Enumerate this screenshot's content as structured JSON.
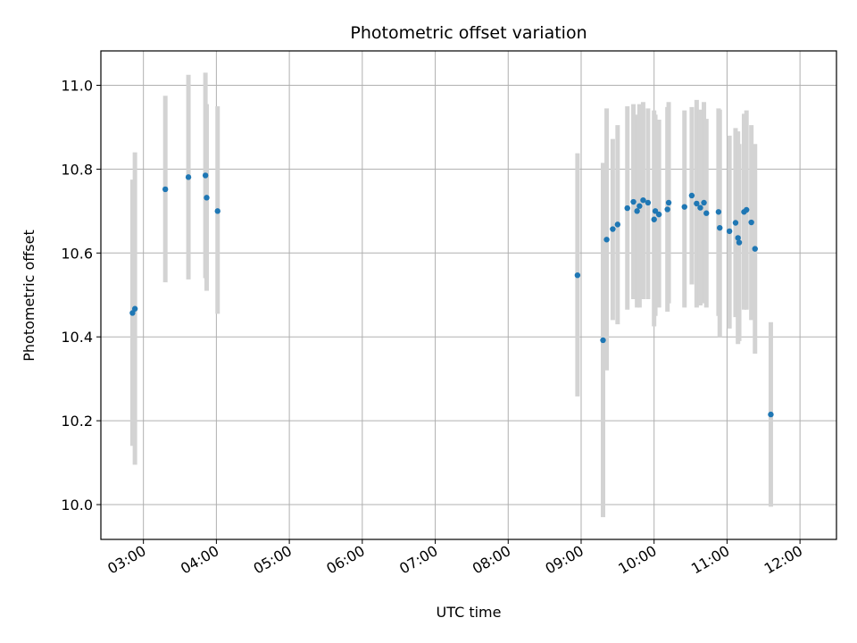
{
  "chart_data": {
    "type": "scatter",
    "title": "Photometric offset variation",
    "xlabel": "UTC time",
    "ylabel": "Photometric offset",
    "x_ticks": [
      "03:00",
      "04:00",
      "05:00",
      "06:00",
      "07:00",
      "08:00",
      "09:00",
      "10:00",
      "11:00",
      "12:00"
    ],
    "x_range": [
      "02:25",
      "12:30"
    ],
    "y_ticks": [
      10.0,
      10.2,
      10.4,
      10.6,
      10.8,
      11.0
    ],
    "y_tick_labels": [
      "10.0",
      "10.2",
      "10.4",
      "10.6",
      "10.8",
      "11.0"
    ],
    "ylim": [
      9.917,
      11.082
    ],
    "grid": true,
    "colors": {
      "point": "#1f77b4",
      "errorbar": "#d3d3d3",
      "grid": "#b0b0b0"
    },
    "points": [
      {
        "x": "02:51",
        "y": 10.457,
        "ylow": 10.14,
        "yhigh": 10.775
      },
      {
        "x": "02:53",
        "y": 10.467,
        "ylow": 10.095,
        "yhigh": 10.84
      },
      {
        "x": "03:18",
        "y": 10.752,
        "ylow": 10.53,
        "yhigh": 10.975
      },
      {
        "x": "03:37",
        "y": 10.781,
        "ylow": 10.537,
        "yhigh": 11.025
      },
      {
        "x": "03:51",
        "y": 10.785,
        "ylow": 10.54,
        "yhigh": 11.03
      },
      {
        "x": "03:52",
        "y": 10.732,
        "ylow": 10.51,
        "yhigh": 10.955
      },
      {
        "x": "04:01",
        "y": 10.7,
        "ylow": 10.455,
        "yhigh": 10.95
      },
      {
        "x": "08:57",
        "y": 10.547,
        "ylow": 10.258,
        "yhigh": 10.838
      },
      {
        "x": "09:18",
        "y": 10.392,
        "ylow": 9.97,
        "yhigh": 10.815
      },
      {
        "x": "09:21",
        "y": 10.632,
        "ylow": 10.32,
        "yhigh": 10.945
      },
      {
        "x": "09:26",
        "y": 10.657,
        "ylow": 10.44,
        "yhigh": 10.872
      },
      {
        "x": "09:30",
        "y": 10.668,
        "ylow": 10.43,
        "yhigh": 10.905
      },
      {
        "x": "09:38",
        "y": 10.707,
        "ylow": 10.465,
        "yhigh": 10.95
      },
      {
        "x": "09:43",
        "y": 10.722,
        "ylow": 10.49,
        "yhigh": 10.955
      },
      {
        "x": "09:46",
        "y": 10.7,
        "ylow": 10.47,
        "yhigh": 10.93
      },
      {
        "x": "09:48",
        "y": 10.712,
        "ylow": 10.47,
        "yhigh": 10.955
      },
      {
        "x": "09:51",
        "y": 10.726,
        "ylow": 10.49,
        "yhigh": 10.96
      },
      {
        "x": "09:55",
        "y": 10.72,
        "ylow": 10.49,
        "yhigh": 10.945
      },
      {
        "x": "10:00",
        "y": 10.68,
        "ylow": 10.425,
        "yhigh": 10.94
      },
      {
        "x": "10:01",
        "y": 10.7,
        "ylow": 10.45,
        "yhigh": 10.93
      },
      {
        "x": "10:04",
        "y": 10.692,
        "ylow": 10.47,
        "yhigh": 10.918
      },
      {
        "x": "10:11",
        "y": 10.704,
        "ylow": 10.46,
        "yhigh": 10.948
      },
      {
        "x": "10:12",
        "y": 10.72,
        "ylow": 10.48,
        "yhigh": 10.96
      },
      {
        "x": "10:25",
        "y": 10.71,
        "ylow": 10.47,
        "yhigh": 10.94
      },
      {
        "x": "10:31",
        "y": 10.737,
        "ylow": 10.525,
        "yhigh": 10.948
      },
      {
        "x": "10:35",
        "y": 10.718,
        "ylow": 10.47,
        "yhigh": 10.965
      },
      {
        "x": "10:38",
        "y": 10.708,
        "ylow": 10.475,
        "yhigh": 10.942
      },
      {
        "x": "10:41",
        "y": 10.72,
        "ylow": 10.48,
        "yhigh": 10.96
      },
      {
        "x": "10:43",
        "y": 10.695,
        "ylow": 10.47,
        "yhigh": 10.92
      },
      {
        "x": "10:53",
        "y": 10.698,
        "ylow": 10.45,
        "yhigh": 10.945
      },
      {
        "x": "10:54",
        "y": 10.66,
        "ylow": 10.4,
        "yhigh": 10.942
      },
      {
        "x": "11:02",
        "y": 10.652,
        "ylow": 10.42,
        "yhigh": 10.88
      },
      {
        "x": "11:07",
        "y": 10.672,
        "ylow": 10.447,
        "yhigh": 10.898
      },
      {
        "x": "11:09",
        "y": 10.636,
        "ylow": 10.383,
        "yhigh": 10.89
      },
      {
        "x": "11:10",
        "y": 10.625,
        "ylow": 10.39,
        "yhigh": 10.86
      },
      {
        "x": "11:14",
        "y": 10.698,
        "ylow": 10.465,
        "yhigh": 10.932
      },
      {
        "x": "11:16",
        "y": 10.703,
        "ylow": 10.465,
        "yhigh": 10.94
      },
      {
        "x": "11:20",
        "y": 10.673,
        "ylow": 10.44,
        "yhigh": 10.905
      },
      {
        "x": "11:23",
        "y": 10.61,
        "ylow": 10.36,
        "yhigh": 10.86
      },
      {
        "x": "11:36",
        "y": 10.215,
        "ylow": 9.995,
        "yhigh": 10.435
      }
    ]
  }
}
